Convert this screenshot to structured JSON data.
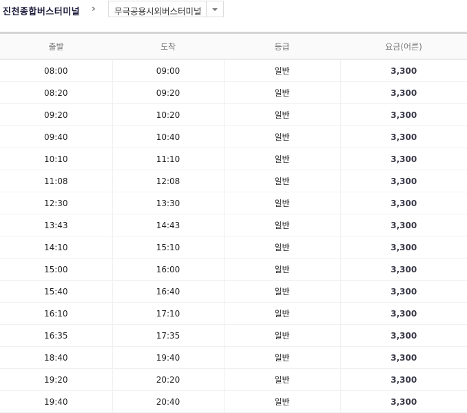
{
  "header": {
    "origin": "진천종합버스터미널",
    "separator": "›",
    "destination_selected": "무극공용시외버스터미널"
  },
  "table": {
    "columns": [
      "출발",
      "도착",
      "등급",
      "요금(어른)"
    ],
    "rows": [
      [
        "08:00",
        "09:00",
        "일반",
        "3,300"
      ],
      [
        "08:20",
        "09:20",
        "일반",
        "3,300"
      ],
      [
        "09:20",
        "10:20",
        "일반",
        "3,300"
      ],
      [
        "09:40",
        "10:40",
        "일반",
        "3,300"
      ],
      [
        "10:10",
        "11:10",
        "일반",
        "3,300"
      ],
      [
        "11:08",
        "12:08",
        "일반",
        "3,300"
      ],
      [
        "12:30",
        "13:30",
        "일반",
        "3,300"
      ],
      [
        "13:43",
        "14:43",
        "일반",
        "3,300"
      ],
      [
        "14:10",
        "15:10",
        "일반",
        "3,300"
      ],
      [
        "15:00",
        "16:00",
        "일반",
        "3,300"
      ],
      [
        "15:40",
        "16:40",
        "일반",
        "3,300"
      ],
      [
        "16:10",
        "17:10",
        "일반",
        "3,300"
      ],
      [
        "16:35",
        "17:35",
        "일반",
        "3,300"
      ],
      [
        "18:40",
        "19:40",
        "일반",
        "3,300"
      ],
      [
        "19:20",
        "20:20",
        "일반",
        "3,300"
      ],
      [
        "19:40",
        "20:40",
        "일반",
        "3,300"
      ]
    ]
  }
}
